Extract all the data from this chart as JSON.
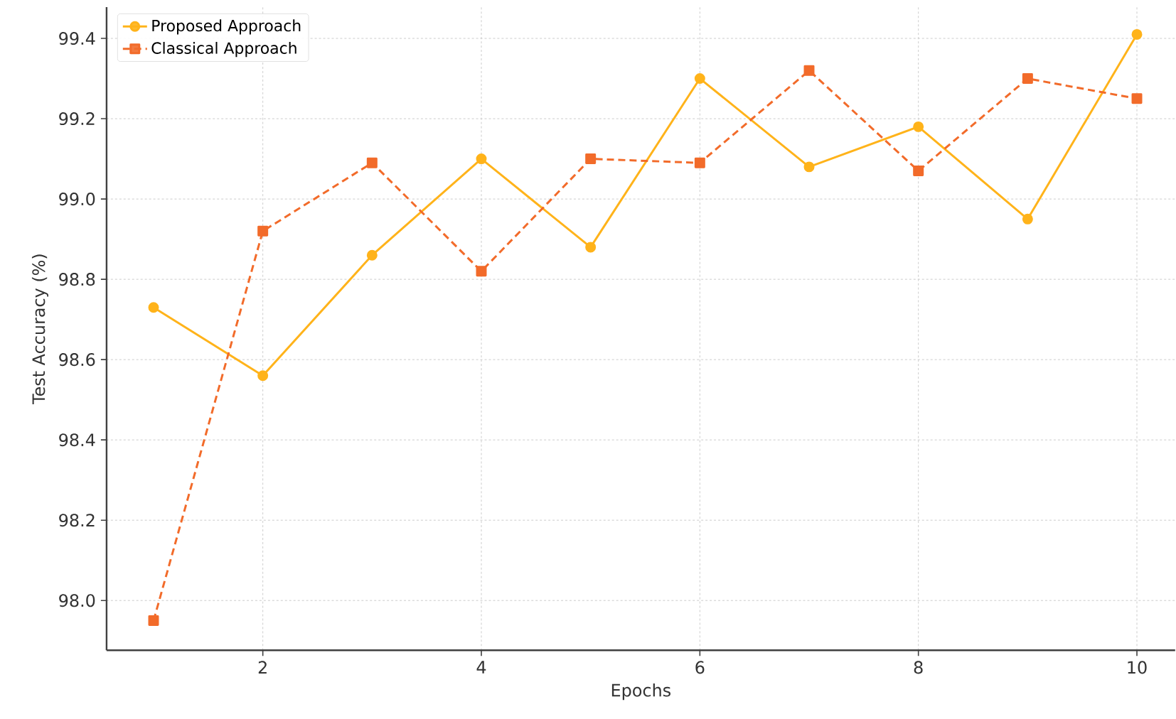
{
  "chart_data": {
    "type": "line",
    "xlabel": "Epochs",
    "ylabel": "Test Accuracy (%)",
    "x": [
      1,
      2,
      3,
      4,
      5,
      6,
      7,
      8,
      9,
      10
    ],
    "series": [
      {
        "name": "Proposed Approach",
        "color": "#ffb31a",
        "marker": "circle",
        "line_style": "solid",
        "values": [
          98.73,
          98.56,
          98.86,
          99.1,
          98.88,
          99.3,
          99.08,
          99.18,
          98.95,
          99.41
        ]
      },
      {
        "name": "Classical Approach",
        "color": "#f26b2a",
        "marker": "square",
        "line_style": "dashed",
        "values": [
          97.95,
          98.92,
          99.09,
          98.82,
          99.1,
          99.09,
          99.32,
          99.07,
          99.3,
          99.25
        ]
      }
    ],
    "xlim": [
      0.57,
      10.35
    ],
    "ylim": [
      97.876,
      99.478
    ],
    "xticks": [
      2,
      4,
      6,
      8,
      10
    ],
    "yticks": [
      {
        "value": 98,
        "label": "98.0"
      },
      98.2,
      98.4,
      98.6,
      98.8,
      {
        "value": 99,
        "label": "99.0"
      },
      99.2,
      99.4
    ],
    "grid": true,
    "legend": "top left"
  }
}
